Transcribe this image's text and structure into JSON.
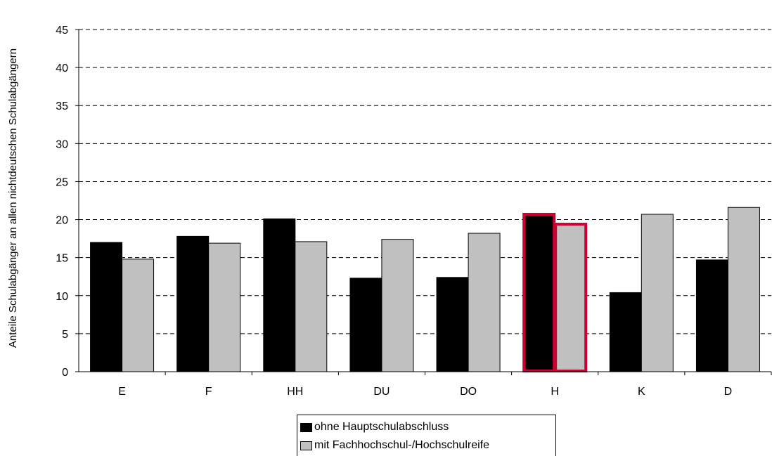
{
  "chart_data": {
    "type": "bar",
    "title": "",
    "xlabel": "",
    "ylabel": "Anteile Schulabgänger an allen nichtdeutschen Schulabgängern",
    "ylim": [
      0,
      45
    ],
    "yticks": [
      "0",
      "5",
      "10",
      "15",
      "20",
      "25",
      "30",
      "35",
      "40",
      "45"
    ],
    "grid": "horizontal dashed",
    "legend_placement": "bottom-center",
    "categories": [
      "E",
      "F",
      "HH",
      "DU",
      "DO",
      "H",
      "K",
      "D"
    ],
    "highlighted_category": "H",
    "series": [
      {
        "name": "ohne Hauptschulabschluss",
        "color": "#000000",
        "values": [
          17.0,
          17.8,
          20.1,
          12.3,
          12.4,
          20.7,
          10.4,
          14.7
        ]
      },
      {
        "name": "mit Fachhochschul-/Hochschulreife",
        "color": "#c0c0c0",
        "values": [
          14.8,
          16.9,
          17.1,
          17.4,
          18.2,
          19.4,
          20.7,
          21.6
        ]
      }
    ],
    "highlight_color": "#cc0033"
  }
}
